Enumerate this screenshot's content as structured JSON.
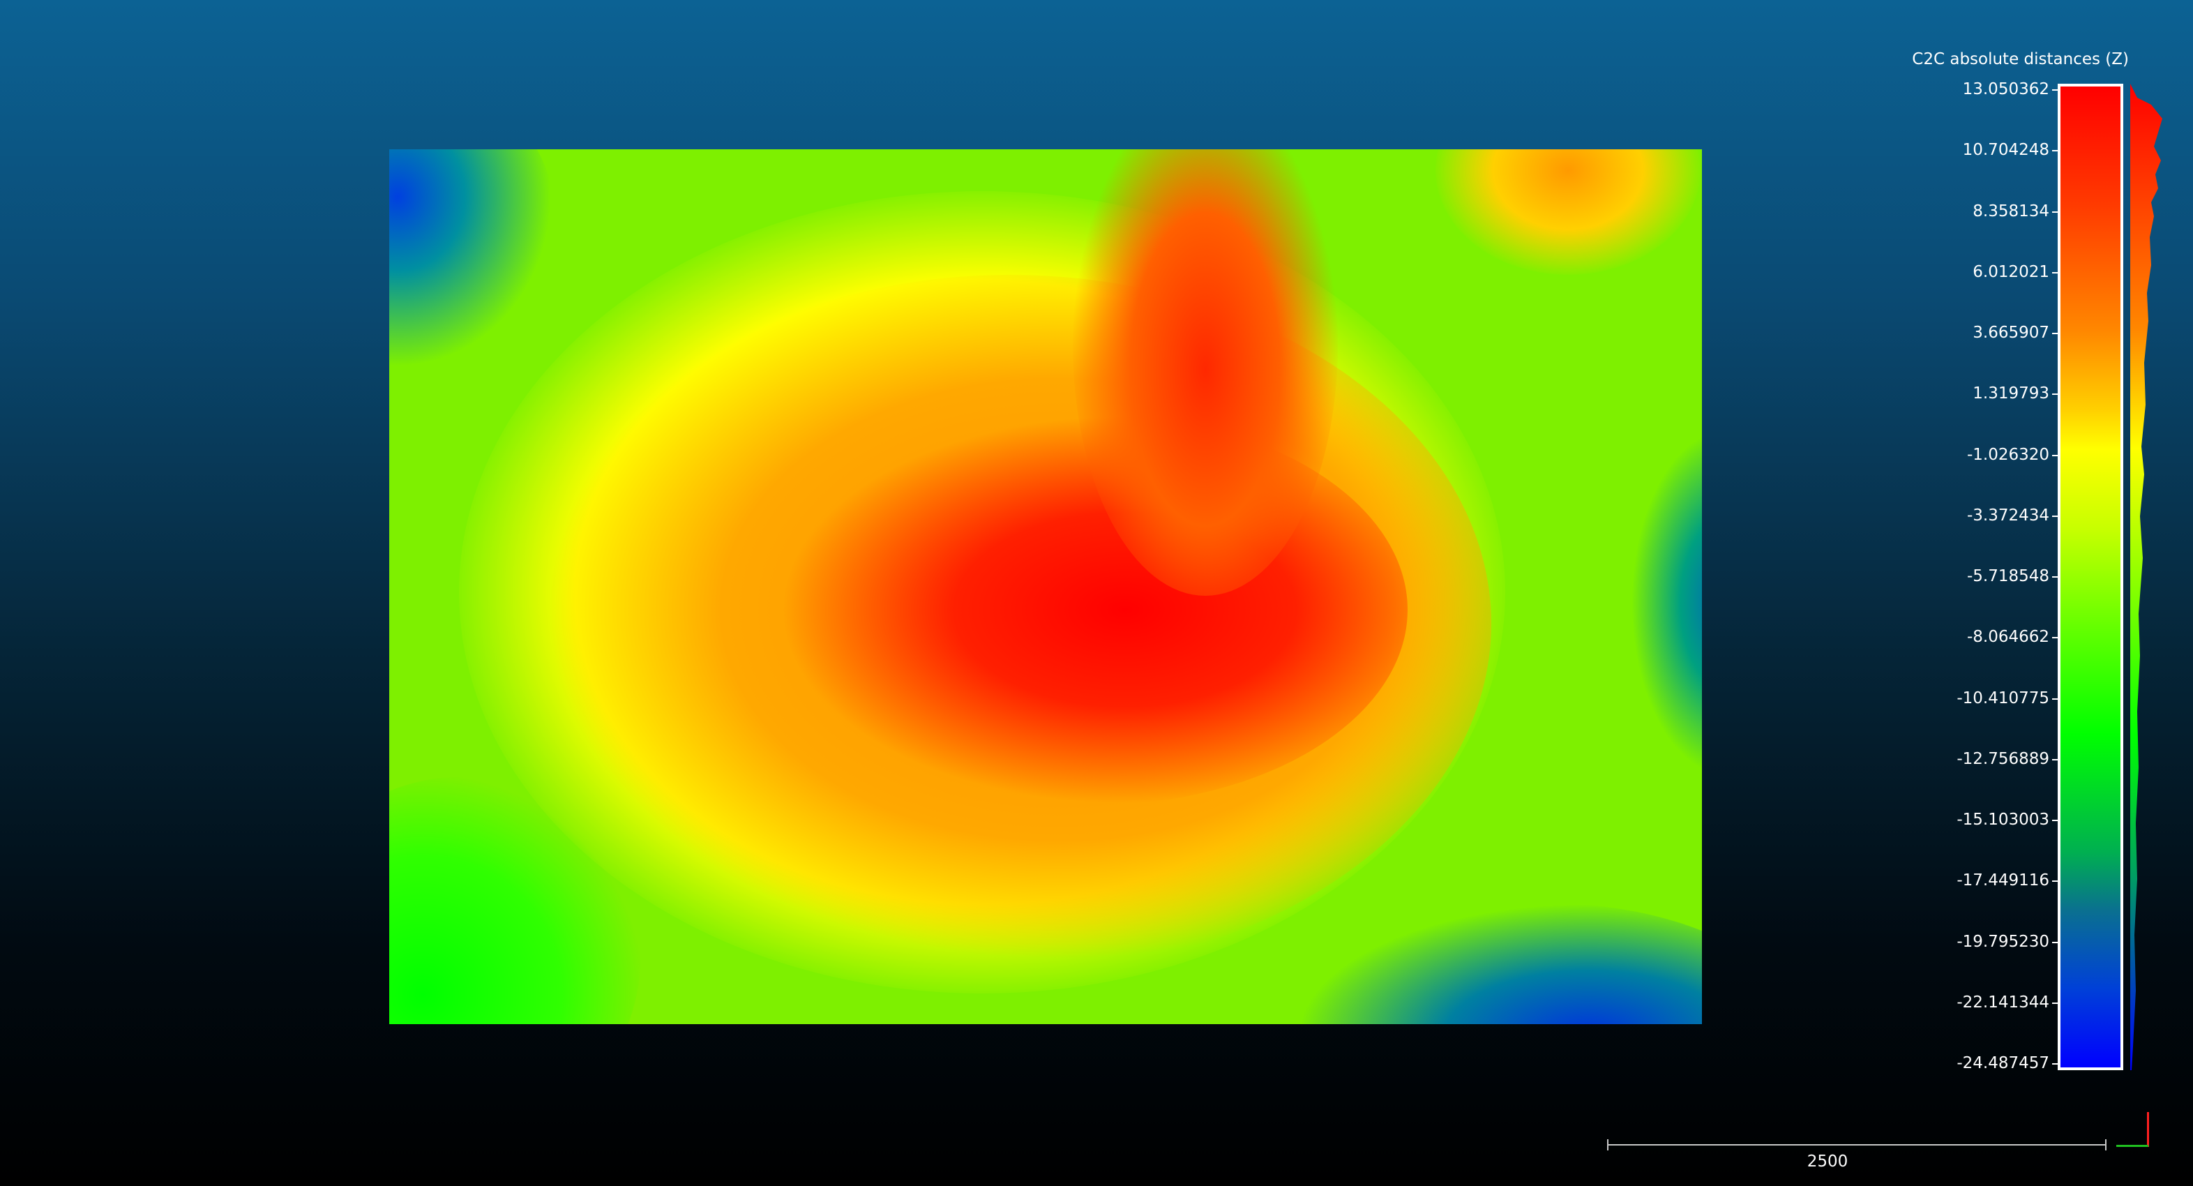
{
  "scalar_field": {
    "title": "C2C absolute distances (Z)",
    "max": 13.050362,
    "min": -24.487457,
    "ticks": [
      "13.050362",
      "10.704248",
      "8.358134",
      "6.012021",
      "3.665907",
      "1.319793",
      "-1.026320",
      "-3.372434",
      "-5.718548",
      "-8.064662",
      "-10.410775",
      "-12.756889",
      "-15.103003",
      "-17.449116",
      "-19.795230",
      "-22.141344",
      "-24.487457"
    ]
  },
  "scale_ruler": {
    "label": "2500"
  },
  "colors": {
    "high": "#ff0000",
    "mid": "#ffff00",
    "low_mid": "#00ff00",
    "low": "#0000ff",
    "axis_x": "#20c020",
    "axis_y": "#ff2020"
  }
}
